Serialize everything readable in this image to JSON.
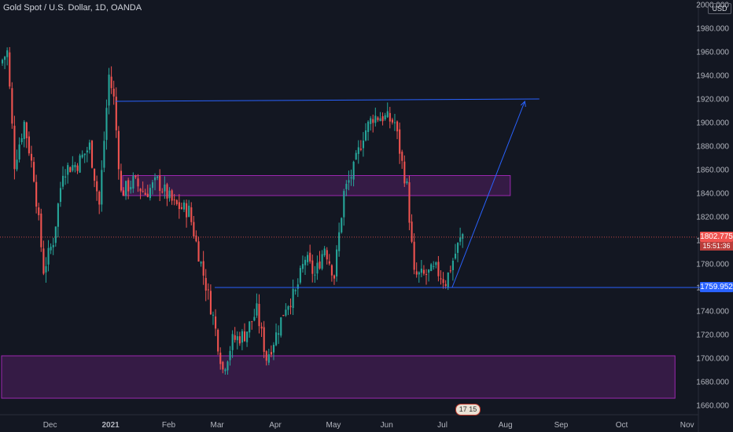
{
  "header": {
    "title": "Gold Spot / U.S. Dollar, 1D, OANDA",
    "currency": "USD"
  },
  "colors": {
    "background": "#131722",
    "up": "#26a69a",
    "down": "#ef5350",
    "zone_fill": "rgba(156,39,176,0.25)",
    "zone_border": "#9c27b0",
    "trendline": "#2962ff",
    "current_price_tag": "#ef5350",
    "level_tag": "#2962ff"
  },
  "price_axis": {
    "ticks": [
      "2000.000",
      "1980.000",
      "1960.000",
      "1940.000",
      "1920.000",
      "1900.000",
      "1880.000",
      "1860.000",
      "1840.000",
      "1820.000",
      "1800.000",
      "1780.000",
      "1760.000",
      "1740.000",
      "1720.000",
      "1700.000",
      "1680.000",
      "1660.000"
    ],
    "tick_values": [
      2000,
      1980,
      1960,
      1940,
      1920,
      1900,
      1880,
      1860,
      1840,
      1820,
      1800,
      1780,
      1760,
      1740,
      1720,
      1700,
      1680,
      1660
    ],
    "current_price": "1802.775",
    "current_price_value": 1802.775,
    "countdown": "15:51:36",
    "level_label": "1759.952",
    "level_value": 1759.952
  },
  "time_axis": {
    "labels": [
      "Dec",
      "2021",
      "Feb",
      "Mar",
      "Apr",
      "May",
      "Jun",
      "Jul",
      "Aug",
      "Sep",
      "Oct",
      "Nov"
    ],
    "bar_indices": [
      20,
      45,
      69,
      89,
      113,
      137,
      159,
      182,
      208,
      231,
      256,
      283
    ]
  },
  "badge_text": "17 15",
  "zones": [
    {
      "name": "supply-zone",
      "start_bar": 50,
      "end_bar": 210,
      "top": 1855,
      "bottom": 1838
    },
    {
      "name": "demand-zone",
      "start_bar": 0,
      "end_bar": 278,
      "top": 1702,
      "bottom": 1666
    }
  ],
  "lines": [
    {
      "name": "resistance-line",
      "from": {
        "bar": 47,
        "price": 1918
      },
      "to": {
        "bar": 222,
        "price": 1920
      }
    },
    {
      "name": "support-line",
      "from": {
        "bar": 88,
        "price": 1760
      },
      "to": {
        "bar": 290,
        "price": 1760
      }
    },
    {
      "name": "projection-arrow",
      "from": {
        "bar": 186,
        "price": 1760
      },
      "to": {
        "bar": 216,
        "price": 1918
      }
    }
  ],
  "candles": {
    "start_price": 1950,
    "path": [
      [
        0,
        1950
      ],
      [
        3,
        1960
      ],
      [
        6,
        1865
      ],
      [
        10,
        1900
      ],
      [
        14,
        1855
      ],
      [
        18,
        1775
      ],
      [
        22,
        1800
      ],
      [
        26,
        1860
      ],
      [
        32,
        1865
      ],
      [
        37,
        1880
      ],
      [
        41,
        1830
      ],
      [
        45,
        1940
      ],
      [
        47,
        1920
      ],
      [
        50,
        1840
      ],
      [
        55,
        1850
      ],
      [
        60,
        1840
      ],
      [
        65,
        1850
      ],
      [
        72,
        1830
      ],
      [
        78,
        1825
      ],
      [
        83,
        1780
      ],
      [
        88,
        1735
      ],
      [
        92,
        1690
      ],
      [
        96,
        1715
      ],
      [
        101,
        1720
      ],
      [
        106,
        1740
      ],
      [
        110,
        1700
      ],
      [
        114,
        1720
      ],
      [
        118,
        1745
      ],
      [
        122,
        1755
      ],
      [
        126,
        1785
      ],
      [
        130,
        1770
      ],
      [
        134,
        1795
      ],
      [
        138,
        1770
      ],
      [
        142,
        1840
      ],
      [
        146,
        1860
      ],
      [
        150,
        1890
      ],
      [
        154,
        1905
      ],
      [
        158,
        1905
      ],
      [
        163,
        1900
      ],
      [
        166,
        1865
      ],
      [
        168,
        1845
      ],
      [
        171,
        1770
      ],
      [
        175,
        1770
      ],
      [
        180,
        1775
      ],
      [
        184,
        1765
      ],
      [
        189,
        1795
      ],
      [
        191,
        1805
      ]
    ],
    "green_shade": "#26a69a",
    "red_shade": "#ef5350"
  }
}
